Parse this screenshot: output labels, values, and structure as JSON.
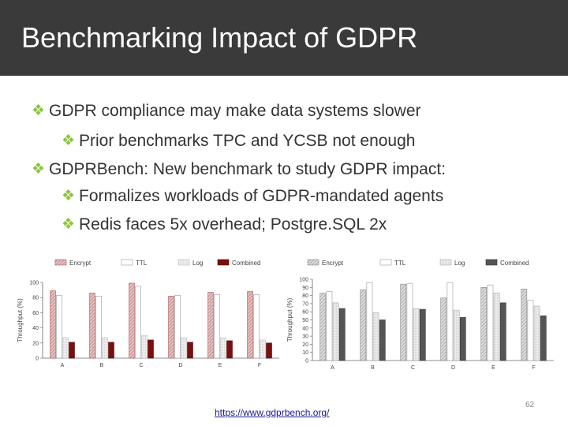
{
  "slide": {
    "title": "Benchmarking Impact of GDPR",
    "bullets": [
      {
        "text": "GDPR compliance may make data systems slower",
        "level": 1
      },
      {
        "text": "Prior benchmarks TPC and YCSB not enough",
        "level": 2
      },
      {
        "text": "GDPRBench: New benchmark to study GDPR impact:",
        "level": 1
      },
      {
        "text": "Formalizes workloads of GDPR-mandated agents",
        "level": 2
      },
      {
        "text": "Redis faces 5x overhead; Postgre.SQL 2x",
        "level": 2
      }
    ],
    "bullet_icon": "diamond-bullet-icon",
    "footer_link": "https://www.gdprbench.org/",
    "page_number": "62",
    "colors": {
      "title_bar": "#3a3a3a",
      "bullet": "#8cc43f",
      "text": "#333333"
    }
  },
  "chart_data": [
    {
      "type": "bar",
      "ylabel": "Throughput (%)",
      "ylim": [
        0,
        100
      ],
      "yticks": [
        0,
        20,
        40,
        60,
        80,
        100
      ],
      "categories": [
        "A",
        "B",
        "C",
        "D",
        "E",
        "F"
      ],
      "legend_position": "top",
      "series": [
        {
          "name": "Encrypt",
          "values": [
            89,
            86,
            99,
            82,
            87,
            88
          ],
          "color": "#c99595",
          "fill": "hatch-red"
        },
        {
          "name": "TTL",
          "values": [
            83,
            82,
            95,
            83,
            84,
            84
          ],
          "color": "#f7f7f7",
          "fill": "outline"
        },
        {
          "name": "Log",
          "values": [
            27,
            27,
            30,
            27,
            27,
            24
          ],
          "color": "#ececec",
          "fill": "light"
        },
        {
          "name": "Combined",
          "values": [
            21,
            21,
            24,
            21,
            23,
            20
          ],
          "color": "#7a0f0f",
          "fill": "solid"
        }
      ]
    },
    {
      "type": "bar",
      "ylabel": "Throughput (%)",
      "ylim": [
        0,
        100
      ],
      "yticks": [
        0,
        10,
        20,
        30,
        40,
        50,
        60,
        70,
        80,
        90,
        100
      ],
      "categories": [
        "A",
        "B",
        "C",
        "D",
        "E",
        "F"
      ],
      "legend_position": "top",
      "series": [
        {
          "name": "Encrypt",
          "values": [
            83,
            87,
            94,
            77,
            90,
            88
          ],
          "color": "#bdbdbd",
          "fill": "hatch-gray"
        },
        {
          "name": "TTL",
          "values": [
            85,
            96,
            95,
            96,
            93,
            74
          ],
          "color": "#f7f7f7",
          "fill": "outline"
        },
        {
          "name": "Log",
          "values": [
            71,
            59,
            64,
            62,
            83,
            67
          ],
          "color": "#d9d9d9",
          "fill": "light"
        },
        {
          "name": "Combined",
          "values": [
            64,
            50,
            63,
            53,
            71,
            55
          ],
          "color": "#555555",
          "fill": "solid"
        }
      ]
    }
  ]
}
